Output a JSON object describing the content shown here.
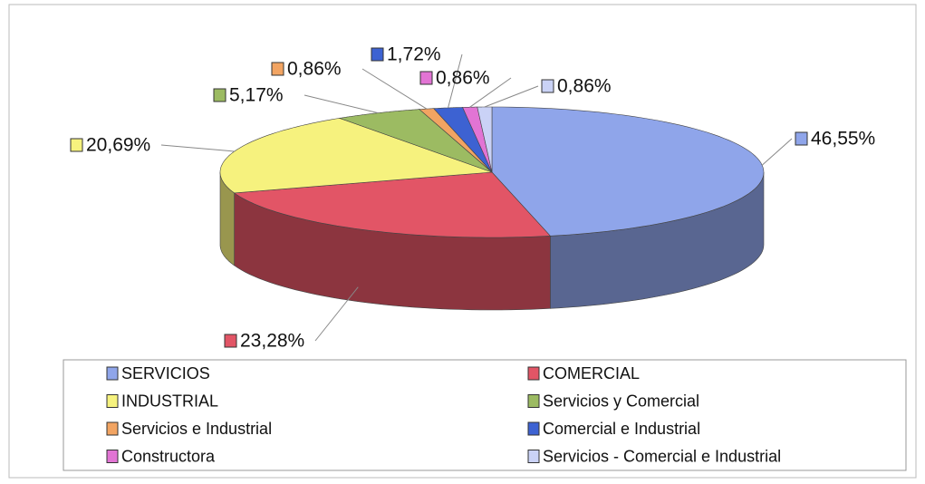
{
  "chart_data": {
    "type": "pie",
    "categories": [
      "SERVICIOS",
      "COMERCIAL",
      "INDUSTRIAL",
      "Servicios y Comercial",
      "Servicios e Industrial",
      "Comercial e Industrial",
      "Constructora",
      "Servicios - Comercial e Industrial"
    ],
    "values": [
      46.55,
      23.28,
      20.69,
      5.17,
      0.86,
      1.72,
      0.86,
      0.86
    ],
    "value_labels": [
      "46,55%",
      "23,28%",
      "20,69%",
      "5,17%",
      "0,86%",
      "1,72%",
      "0,86%",
      "0,86%"
    ],
    "colors": [
      "#8fa5ea",
      "#e25566",
      "#f6f27e",
      "#9cbb62",
      "#f2a462",
      "#3d62d2",
      "#e274d4",
      "#cad2f6"
    ],
    "legend": "bottom"
  }
}
